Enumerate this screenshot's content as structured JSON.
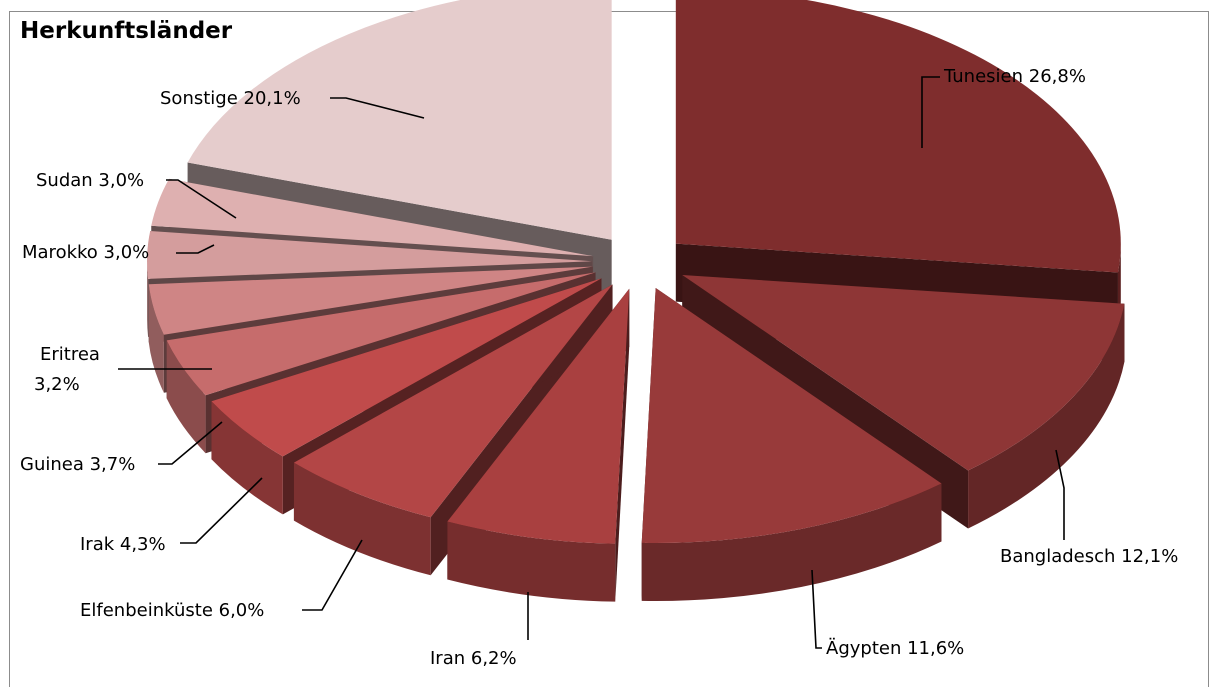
{
  "chart_data": {
    "type": "pie",
    "title": "Herkunftsländer",
    "three_d": true,
    "exploded": true,
    "slices": [
      {
        "name": "Tunesien",
        "value": 26.8,
        "label": "Tunesien 26,8%",
        "color": "#7f2d2d"
      },
      {
        "name": "Bangladesch",
        "value": 12.1,
        "label": "Bangladesch 12,1%",
        "color": "#8e3636"
      },
      {
        "name": "Ägypten",
        "value": 11.6,
        "label": "Ägypten 11,6%",
        "color": "#983a3a"
      },
      {
        "name": "Iran",
        "value": 6.2,
        "label": "Iran 6,2%",
        "color": "#a94040"
      },
      {
        "name": "Elfenbeinküste",
        "value": 6.0,
        "label": "Elfenbeinküste 6,0%",
        "color": "#b34646"
      },
      {
        "name": "Irak",
        "value": 4.3,
        "label": "Irak 4,3%",
        "color": "#c04b4b"
      },
      {
        "name": "Guinea",
        "value": 3.7,
        "label": "Guinea 3,7%",
        "color": "#c66c6c"
      },
      {
        "name": "Eritrea",
        "value": 3.2,
        "label": "Eritrea 3,2%",
        "color": "#cf8585"
      },
      {
        "name": "Marokko",
        "value": 3.0,
        "label": "Marokko 3,0%",
        "color": "#d49d9d"
      },
      {
        "name": "Sudan",
        "value": 3.0,
        "label": "Sudan 3,0%",
        "color": "#deb0b0"
      },
      {
        "name": "Sonstige",
        "value": 20.1,
        "label": "Sonstige 20,1%",
        "color": "#e5cccc"
      }
    ]
  }
}
